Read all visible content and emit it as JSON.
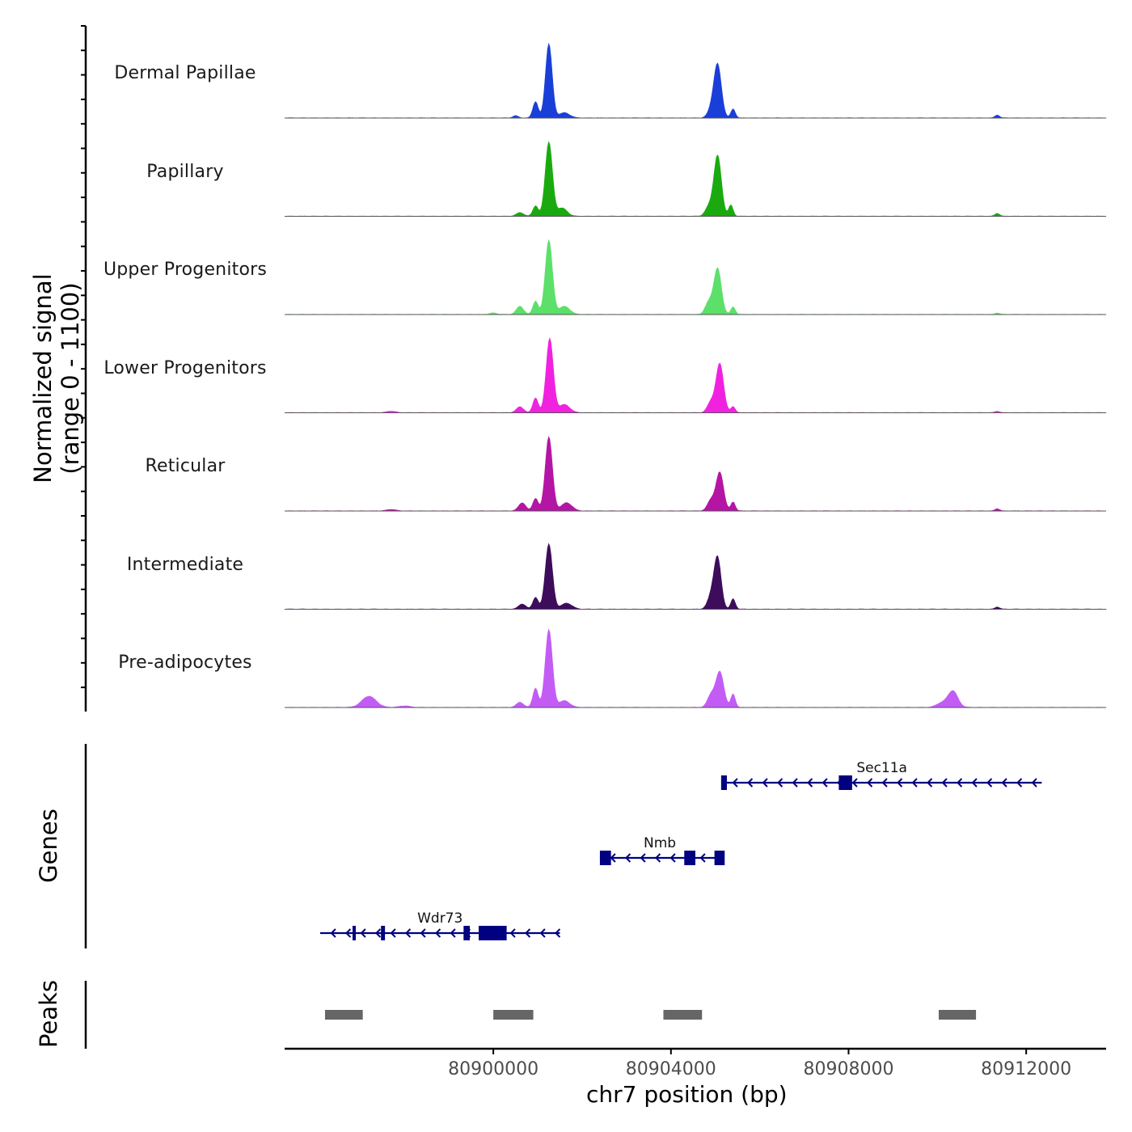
{
  "chart_data": {
    "type": "area",
    "title": "",
    "ylabel_line1": "Normalized signal",
    "ylabel_line2": "(range 0 - 1100)",
    "yrange": [
      0,
      1100
    ],
    "genes_label": "Genes",
    "peaks_label": "Peaks",
    "xlabel": "chr7 position (bp)",
    "xlim": [
      80895300,
      80913800
    ],
    "x_ticks": [
      80900000,
      80904000,
      80908000,
      80912000
    ],
    "x_tick_labels": [
      "80900000",
      "80904000",
      "80908000",
      "80912000"
    ],
    "series": [
      {
        "name": "Dermal Papillae",
        "color": "#1a3fd8",
        "peaks": [
          [
            80900950,
            220,
            60
          ],
          [
            80901250,
            1000,
            75
          ],
          [
            80901600,
            70,
            120
          ],
          [
            80904900,
            90,
            80
          ],
          [
            80905050,
            720,
            85
          ],
          [
            80905400,
            120,
            50
          ],
          [
            80900500,
            30,
            60
          ],
          [
            80911350,
            40,
            50
          ]
        ]
      },
      {
        "name": "Papillary",
        "color": "#1aaa10",
        "peaks": [
          [
            80900600,
            50,
            80
          ],
          [
            80900950,
            140,
            60
          ],
          [
            80901250,
            1000,
            80
          ],
          [
            80901550,
            110,
            110
          ],
          [
            80904850,
            120,
            80
          ],
          [
            80905050,
            820,
            85
          ],
          [
            80905350,
            150,
            50
          ],
          [
            80911350,
            40,
            50
          ]
        ]
      },
      {
        "name": "Upper Progenitors",
        "color": "#5ce06a",
        "peaks": [
          [
            80900600,
            110,
            80
          ],
          [
            80900950,
            180,
            60
          ],
          [
            80901250,
            1000,
            80
          ],
          [
            80901600,
            110,
            120
          ],
          [
            80904850,
            160,
            80
          ],
          [
            80905050,
            620,
            85
          ],
          [
            80905400,
            100,
            50
          ],
          [
            80900000,
            20,
            80
          ],
          [
            80911350,
            20,
            50
          ]
        ]
      },
      {
        "name": "Lower Progenitors",
        "color": "#f022e0",
        "peaks": [
          [
            80900600,
            80,
            80
          ],
          [
            80900950,
            200,
            60
          ],
          [
            80901270,
            1000,
            80
          ],
          [
            80901600,
            110,
            120
          ],
          [
            80904900,
            140,
            80
          ],
          [
            80905100,
            660,
            85
          ],
          [
            80905400,
            80,
            50
          ],
          [
            80897700,
            20,
            100
          ],
          [
            80911350,
            20,
            50
          ]
        ]
      },
      {
        "name": "Reticular",
        "color": "#b415a5",
        "peaks": [
          [
            80900650,
            110,
            80
          ],
          [
            80900950,
            170,
            60
          ],
          [
            80901250,
            1000,
            80
          ],
          [
            80901650,
            110,
            120
          ],
          [
            80904900,
            140,
            80
          ],
          [
            80905100,
            520,
            85
          ],
          [
            80905400,
            120,
            50
          ],
          [
            80897700,
            20,
            100
          ],
          [
            80911350,
            30,
            50
          ]
        ]
      },
      {
        "name": "Intermediate",
        "color": "#3d0c5a",
        "peaks": [
          [
            80900650,
            70,
            80
          ],
          [
            80900950,
            160,
            60
          ],
          [
            80901250,
            880,
            80
          ],
          [
            80901650,
            80,
            120
          ],
          [
            80904900,
            160,
            80
          ],
          [
            80905050,
            690,
            80
          ],
          [
            80905400,
            140,
            50
          ],
          [
            80911350,
            30,
            50
          ]
        ]
      },
      {
        "name": "Pre-adipocytes",
        "color": "#c35cf5",
        "peaks": [
          [
            80897200,
            150,
            160
          ],
          [
            80898000,
            20,
            120
          ],
          [
            80900600,
            70,
            80
          ],
          [
            80900950,
            260,
            60
          ],
          [
            80901250,
            1050,
            80
          ],
          [
            80901600,
            90,
            120
          ],
          [
            80904900,
            160,
            80
          ],
          [
            80905100,
            480,
            90
          ],
          [
            80905400,
            180,
            50
          ],
          [
            80910350,
            220,
            110
          ],
          [
            80910100,
            60,
            120
          ]
        ]
      }
    ],
    "genes": [
      {
        "name": "Sec11a",
        "strand": "-",
        "start": 80905150,
        "end": 80912350,
        "exons": [
          [
            80905130,
            80905260
          ],
          [
            80907780,
            80908080
          ]
        ]
      },
      {
        "name": "Nmb",
        "strand": "-",
        "start": 80902400,
        "end": 80905100,
        "exons": [
          [
            80902400,
            80902650
          ],
          [
            80904300,
            80904550
          ],
          [
            80904980,
            80905210
          ]
        ]
      },
      {
        "name": "Wdr73",
        "strand": "-",
        "start": 80896100,
        "end": 80901500,
        "exons": [
          [
            80896830,
            80896890
          ],
          [
            80897470,
            80897560
          ],
          [
            80899330,
            80899470
          ],
          [
            80899670,
            80900300
          ]
        ]
      }
    ],
    "peaks_regions": [
      [
        80896210,
        80897060
      ],
      [
        80900000,
        80900900
      ],
      [
        80903830,
        80904700
      ],
      [
        80910030,
        80910870
      ]
    ]
  }
}
